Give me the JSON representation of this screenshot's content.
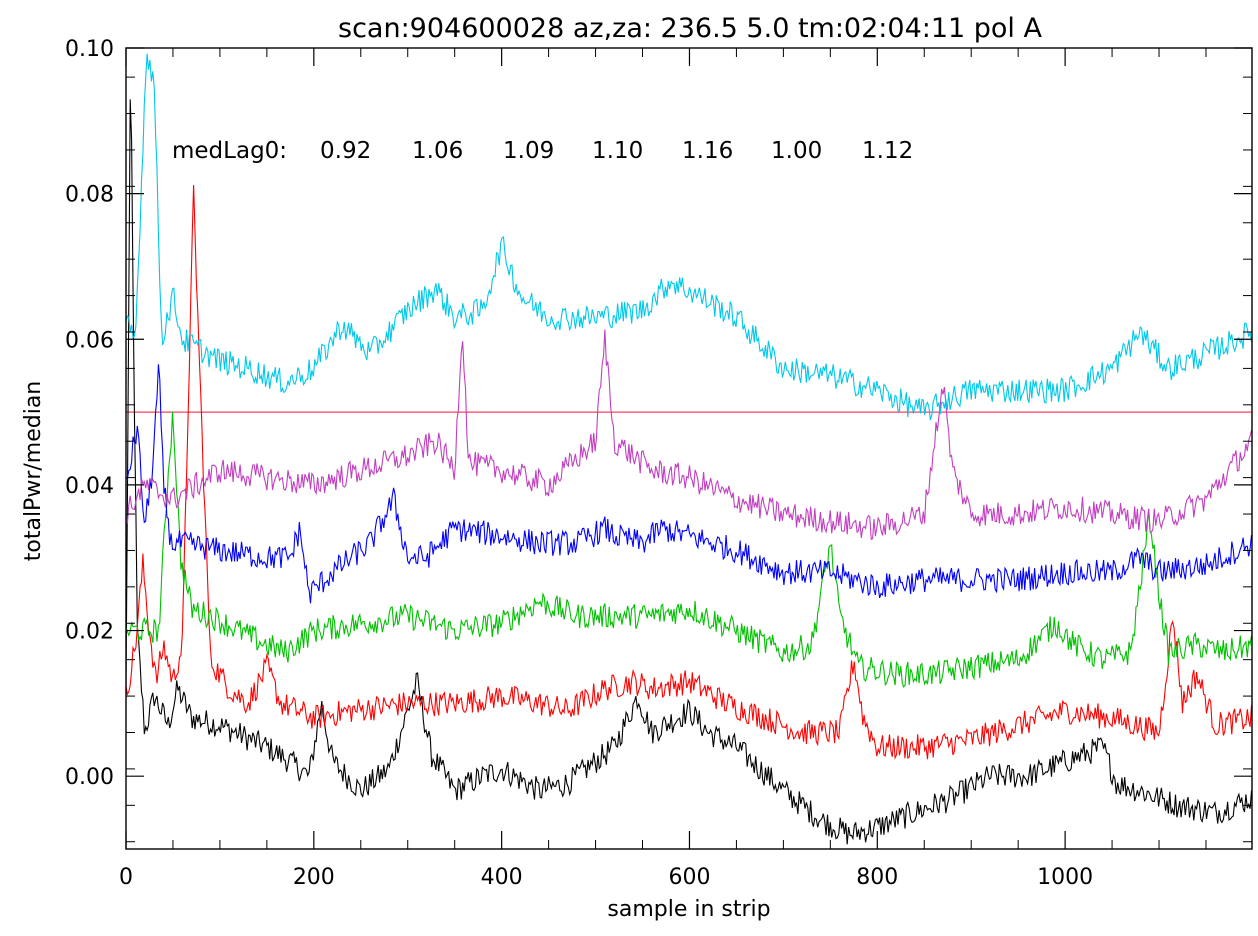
{
  "chart_data": {
    "type": "line",
    "title": "scan:904600028 az,za: 236.5     5.0 tm:02:04:11 pol A",
    "xlabel": "sample in strip",
    "ylabel": "totalPwr/median",
    "xlim": [
      0,
      1199
    ],
    "ylim": [
      -0.01,
      0.1
    ],
    "x_ticks": [
      0,
      200,
      400,
      600,
      800,
      1000
    ],
    "x_tick_labels": [
      "0",
      "200",
      "400",
      "600",
      "800",
      "1000"
    ],
    "y_ticks": [
      0.0,
      0.02,
      0.04,
      0.06,
      0.08,
      0.1
    ],
    "y_tick_labels": [
      "0.00",
      "0.02",
      "0.04",
      "0.06",
      "0.08",
      "0.10"
    ],
    "grid": false,
    "annotation": {
      "label": "medLag0:",
      "values": [
        "0.92",
        "1.06",
        "1.09",
        "1.10",
        "1.16",
        "1.00",
        "1.12"
      ]
    },
    "reference_line": {
      "y": 0.05,
      "color": "#ff4060"
    },
    "series": [
      {
        "color": "#000000",
        "offset": 0.0,
        "points": [
          [
            0,
            0.012
          ],
          [
            5,
            0.1
          ],
          [
            8,
            0.06
          ],
          [
            12,
            0.02
          ],
          [
            20,
            0.006
          ],
          [
            30,
            0.011
          ],
          [
            45,
            0.007
          ],
          [
            55,
            0.012
          ],
          [
            70,
            0.008
          ],
          [
            100,
            0.007
          ],
          [
            150,
            0.004
          ],
          [
            175,
            0.002
          ],
          [
            195,
            0.0
          ],
          [
            208,
            0.01
          ],
          [
            220,
            0.002
          ],
          [
            250,
            -0.002
          ],
          [
            280,
            0.001
          ],
          [
            300,
            0.009
          ],
          [
            310,
            0.013
          ],
          [
            325,
            0.003
          ],
          [
            350,
            -0.002
          ],
          [
            380,
            0.0
          ],
          [
            400,
            0.001
          ],
          [
            440,
            -0.002
          ],
          [
            470,
            -0.001
          ],
          [
            520,
            0.004
          ],
          [
            545,
            0.011
          ],
          [
            560,
            0.006
          ],
          [
            600,
            0.009
          ],
          [
            620,
            0.006
          ],
          [
            650,
            0.004
          ],
          [
            700,
            -0.002
          ],
          [
            740,
            -0.006
          ],
          [
            770,
            -0.008
          ],
          [
            800,
            -0.007
          ],
          [
            840,
            -0.005
          ],
          [
            880,
            -0.003
          ],
          [
            920,
            0.0
          ],
          [
            960,
            0.0
          ],
          [
            1000,
            0.002
          ],
          [
            1040,
            0.004
          ],
          [
            1055,
            -0.001
          ],
          [
            1080,
            -0.002
          ],
          [
            1120,
            -0.004
          ],
          [
            1160,
            -0.005
          ],
          [
            1199,
            -0.003
          ]
        ]
      },
      {
        "color": "#ff0000",
        "offset": 0.01,
        "points": [
          [
            0,
            0.001
          ],
          [
            10,
            0.008
          ],
          [
            18,
            0.019
          ],
          [
            25,
            0.01
          ],
          [
            32,
            0.003
          ],
          [
            40,
            0.008
          ],
          [
            50,
            0.003
          ],
          [
            60,
            0.008
          ],
          [
            66,
            0.04
          ],
          [
            72,
            0.07
          ],
          [
            80,
            0.04
          ],
          [
            90,
            0.006
          ],
          [
            110,
            0.002
          ],
          [
            130,
            0.0
          ],
          [
            150,
            0.005
          ],
          [
            165,
            0.0
          ],
          [
            200,
            -0.002
          ],
          [
            240,
            -0.001
          ],
          [
            300,
            0.0
          ],
          [
            350,
            0.0
          ],
          [
            400,
            0.001
          ],
          [
            440,
            0.0
          ],
          [
            470,
            -0.001
          ],
          [
            510,
            0.002
          ],
          [
            540,
            0.003
          ],
          [
            560,
            0.002
          ],
          [
            600,
            0.003
          ],
          [
            640,
            0.0
          ],
          [
            680,
            -0.002
          ],
          [
            720,
            -0.004
          ],
          [
            760,
            -0.004
          ],
          [
            775,
            0.006
          ],
          [
            785,
            -0.002
          ],
          [
            800,
            -0.006
          ],
          [
            850,
            -0.006
          ],
          [
            900,
            -0.005
          ],
          [
            950,
            -0.003
          ],
          [
            1000,
            -0.001
          ],
          [
            1050,
            -0.002
          ],
          [
            1100,
            -0.004
          ],
          [
            1115,
            0.012
          ],
          [
            1125,
            0.0
          ],
          [
            1140,
            0.004
          ],
          [
            1160,
            -0.003
          ],
          [
            1199,
            -0.002
          ]
        ]
      },
      {
        "color": "#00c000",
        "offset": 0.02,
        "points": [
          [
            0,
            0.0
          ],
          [
            20,
            0.0
          ],
          [
            35,
            0.0
          ],
          [
            45,
            0.022
          ],
          [
            50,
            0.03
          ],
          [
            58,
            0.01
          ],
          [
            70,
            0.003
          ],
          [
            90,
            0.002
          ],
          [
            120,
            0.0
          ],
          [
            150,
            -0.002
          ],
          [
            170,
            -0.003
          ],
          [
            200,
            0.0
          ],
          [
            250,
            0.001
          ],
          [
            300,
            0.002
          ],
          [
            350,
            0.0
          ],
          [
            400,
            0.001
          ],
          [
            440,
            0.004
          ],
          [
            480,
            0.002
          ],
          [
            520,
            0.002
          ],
          [
            560,
            0.002
          ],
          [
            600,
            0.003
          ],
          [
            650,
            0.0
          ],
          [
            700,
            -0.003
          ],
          [
            730,
            -0.002
          ],
          [
            750,
            0.012
          ],
          [
            760,
            0.002
          ],
          [
            780,
            -0.005
          ],
          [
            820,
            -0.006
          ],
          [
            860,
            -0.006
          ],
          [
            900,
            -0.005
          ],
          [
            950,
            -0.004
          ],
          [
            990,
            0.001
          ],
          [
            1010,
            -0.002
          ],
          [
            1040,
            -0.004
          ],
          [
            1070,
            -0.003
          ],
          [
            1090,
            0.016
          ],
          [
            1100,
            0.005
          ],
          [
            1110,
            -0.003
          ],
          [
            1140,
            -0.002
          ],
          [
            1170,
            -0.003
          ],
          [
            1199,
            -0.002
          ]
        ]
      },
      {
        "color": "#0000ff",
        "offset": 0.03,
        "points": [
          [
            0,
            0.01
          ],
          [
            12,
            0.018
          ],
          [
            20,
            0.004
          ],
          [
            28,
            0.012
          ],
          [
            35,
            0.026
          ],
          [
            40,
            0.01
          ],
          [
            48,
            0.002
          ],
          [
            60,
            0.002
          ],
          [
            100,
            0.001
          ],
          [
            150,
            0.0
          ],
          [
            175,
            0.0
          ],
          [
            185,
            0.004
          ],
          [
            195,
            -0.005
          ],
          [
            220,
            -0.002
          ],
          [
            260,
            0.002
          ],
          [
            285,
            0.008
          ],
          [
            300,
            0.0
          ],
          [
            320,
            0.0
          ],
          [
            350,
            0.004
          ],
          [
            400,
            0.003
          ],
          [
            440,
            0.002
          ],
          [
            480,
            0.002
          ],
          [
            510,
            0.004
          ],
          [
            520,
            0.003
          ],
          [
            550,
            0.002
          ],
          [
            570,
            0.004
          ],
          [
            600,
            0.003
          ],
          [
            650,
            0.001
          ],
          [
            700,
            -0.002
          ],
          [
            750,
            -0.002
          ],
          [
            800,
            -0.004
          ],
          [
            850,
            -0.003
          ],
          [
            900,
            -0.003
          ],
          [
            950,
            -0.003
          ],
          [
            1000,
            -0.002
          ],
          [
            1050,
            -0.002
          ],
          [
            1080,
            0.0
          ],
          [
            1100,
            -0.002
          ],
          [
            1150,
            -0.001
          ],
          [
            1199,
            0.002
          ]
        ]
      },
      {
        "color": "#c040c0",
        "offset": 0.04,
        "points": [
          [
            0,
            -0.004
          ],
          [
            20,
            0.0
          ],
          [
            50,
            -0.002
          ],
          [
            100,
            0.002
          ],
          [
            150,
            0.001
          ],
          [
            200,
            0.0
          ],
          [
            250,
            0.002
          ],
          [
            300,
            0.004
          ],
          [
            330,
            0.006
          ],
          [
            350,
            0.002
          ],
          [
            358,
            0.022
          ],
          [
            365,
            0.003
          ],
          [
            400,
            0.002
          ],
          [
            450,
            0.0
          ],
          [
            500,
            0.006
          ],
          [
            510,
            0.02
          ],
          [
            520,
            0.006
          ],
          [
            560,
            0.002
          ],
          [
            600,
            0.001
          ],
          [
            650,
            -0.002
          ],
          [
            700,
            -0.004
          ],
          [
            750,
            -0.005
          ],
          [
            800,
            -0.006
          ],
          [
            850,
            -0.004
          ],
          [
            870,
            0.014
          ],
          [
            880,
            0.002
          ],
          [
            900,
            -0.004
          ],
          [
            950,
            -0.004
          ],
          [
            1000,
            -0.003
          ],
          [
            1050,
            -0.004
          ],
          [
            1100,
            -0.005
          ],
          [
            1150,
            -0.002
          ],
          [
            1199,
            0.006
          ]
        ]
      },
      {
        "color": "#00c8e8",
        "offset": 0.05,
        "points": [
          [
            0,
            0.012
          ],
          [
            10,
            0.01
          ],
          [
            22,
            0.05
          ],
          [
            30,
            0.045
          ],
          [
            38,
            0.01
          ],
          [
            50,
            0.016
          ],
          [
            60,
            0.01
          ],
          [
            100,
            0.007
          ],
          [
            130,
            0.006
          ],
          [
            170,
            0.004
          ],
          [
            200,
            0.006
          ],
          [
            230,
            0.012
          ],
          [
            260,
            0.008
          ],
          [
            300,
            0.014
          ],
          [
            330,
            0.017
          ],
          [
            350,
            0.013
          ],
          [
            380,
            0.014
          ],
          [
            400,
            0.023
          ],
          [
            420,
            0.016
          ],
          [
            450,
            0.013
          ],
          [
            500,
            0.013
          ],
          [
            550,
            0.014
          ],
          [
            580,
            0.018
          ],
          [
            610,
            0.016
          ],
          [
            650,
            0.013
          ],
          [
            700,
            0.006
          ],
          [
            750,
            0.005
          ],
          [
            800,
            0.003
          ],
          [
            850,
            0.0
          ],
          [
            880,
            0.002
          ],
          [
            900,
            0.003
          ],
          [
            950,
            0.003
          ],
          [
            1000,
            0.003
          ],
          [
            1050,
            0.006
          ],
          [
            1080,
            0.011
          ],
          [
            1110,
            0.006
          ],
          [
            1150,
            0.008
          ],
          [
            1199,
            0.011
          ]
        ]
      }
    ]
  }
}
